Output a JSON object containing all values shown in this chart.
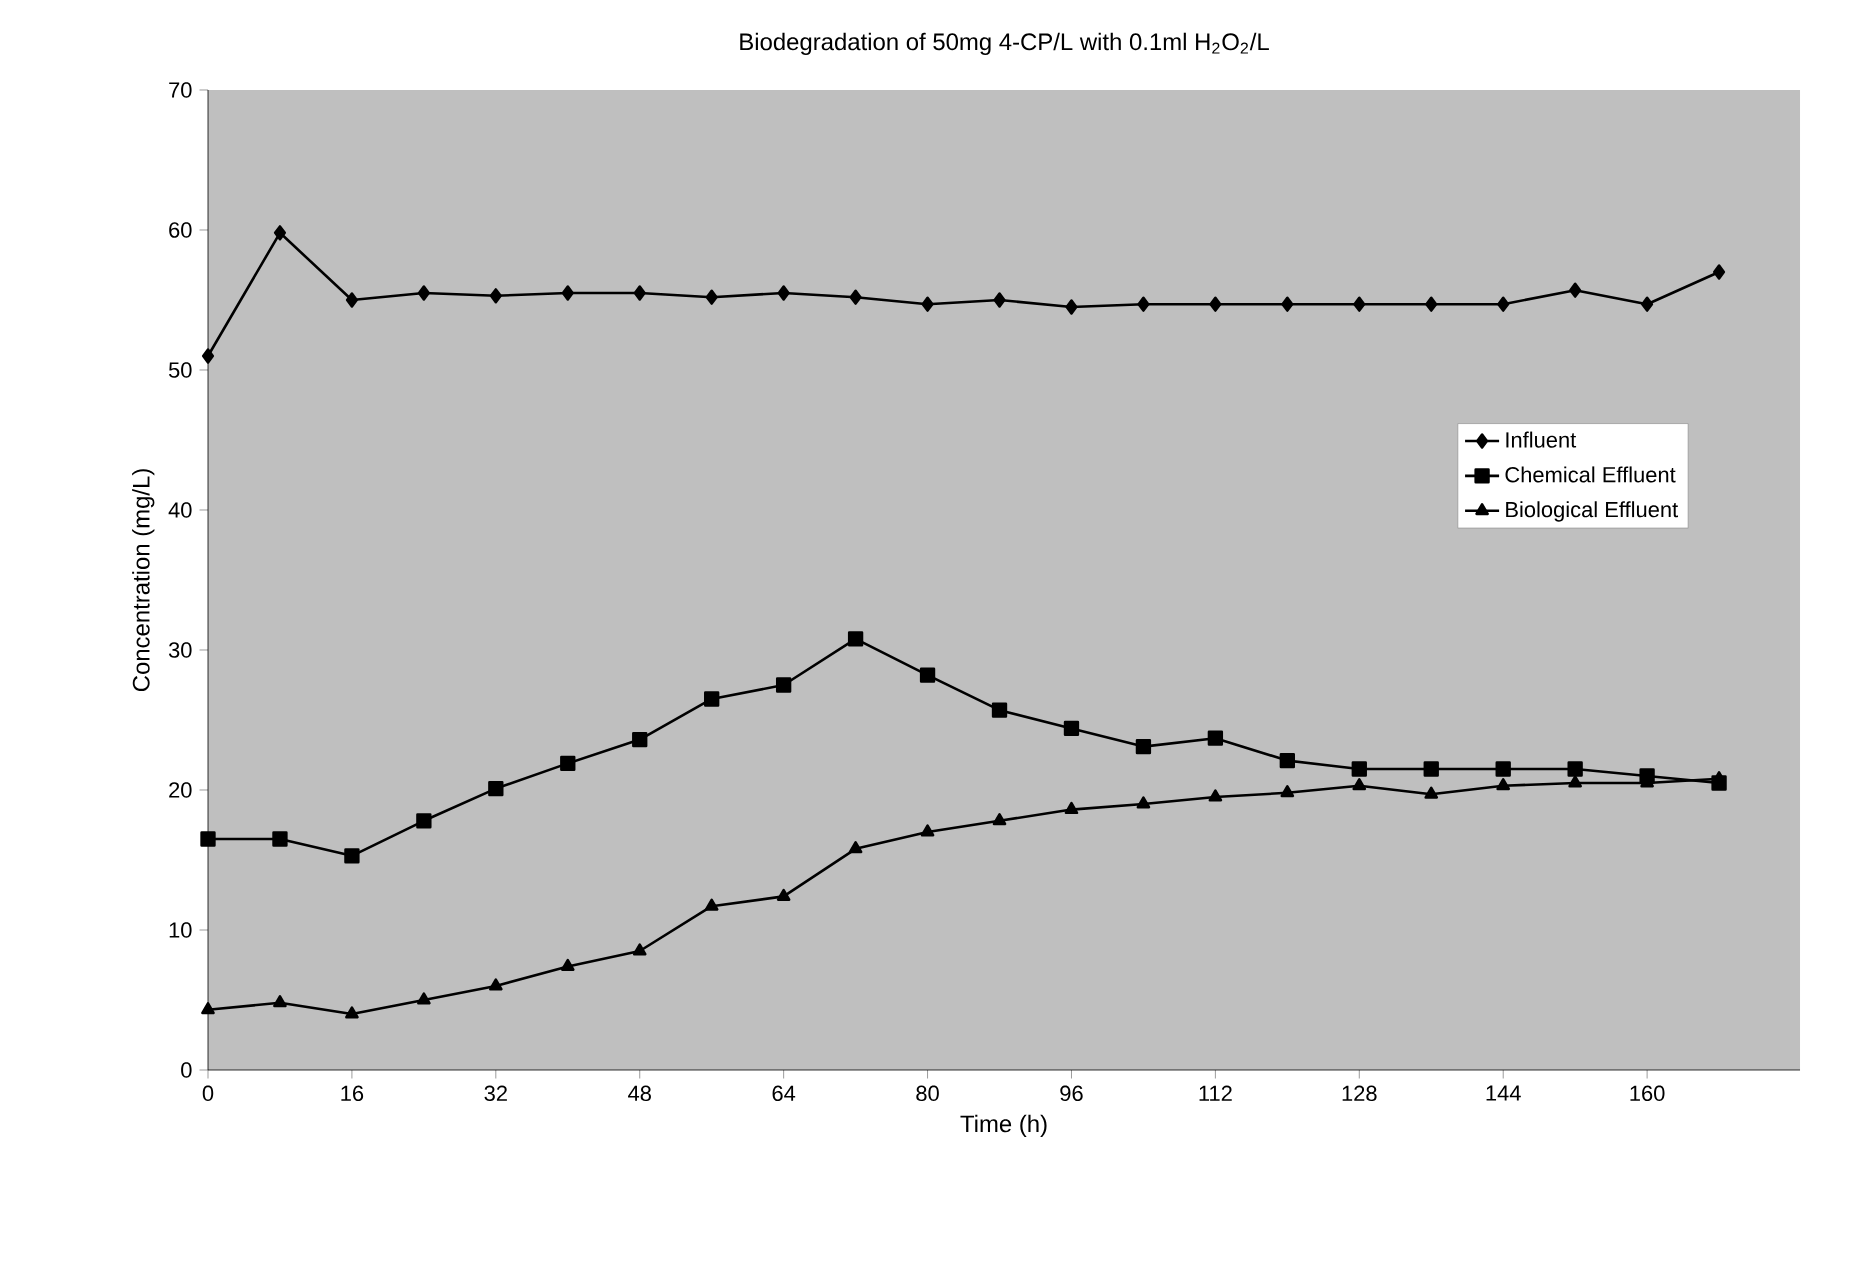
{
  "chart_data": {
    "type": "line",
    "title": "Biodegradation of  50mg 4-CP/L with 0.1ml H$_{2}$O$_{2}$/L",
    "xlabel": "Time (h)",
    "ylabel": "Concentration (mg/L)",
    "x": [
      0,
      8,
      16,
      24,
      32,
      40,
      48,
      56,
      64,
      72,
      80,
      88,
      96,
      104,
      112,
      120,
      128,
      136,
      144,
      152,
      160,
      168
    ],
    "series": [
      {
        "name": "Influent",
        "color": "#000000",
        "marker": "diamond",
        "values": [
          51,
          59.8,
          55,
          55.5,
          55.3,
          55.5,
          55.5,
          55.2,
          55.5,
          55.2,
          54.7,
          55,
          54.5,
          54.7,
          54.7,
          54.7,
          54.7,
          54.7,
          54.7,
          55.7,
          54.7,
          57
        ]
      },
      {
        "name": "Chemical Effluent",
        "color": "#000000",
        "marker": "square",
        "values": [
          16.5,
          16.5,
          15.3,
          17.8,
          20.1,
          21.9,
          23.6,
          26.5,
          27.5,
          30.8,
          28.2,
          25.7,
          24.4,
          23.1,
          23.7,
          22.1,
          21.5,
          21.5,
          21.5,
          21.5,
          21,
          20.5
        ]
      },
      {
        "name": "Biological Effluent",
        "color": "#000000",
        "marker": "triangle",
        "values": [
          4.3,
          4.8,
          4,
          5,
          6,
          7.4,
          8.5,
          11.7,
          12.4,
          15.8,
          17,
          17.8,
          18.6,
          19,
          19.5,
          19.8,
          20.3,
          19.7,
          20.3,
          20.5,
          20.5,
          20.8
        ]
      }
    ],
    "xlim": [
      0,
      177
    ],
    "ylim": [
      0,
      70
    ],
    "xticks": [
      0,
      16,
      32,
      48,
      64,
      80,
      96,
      112,
      128,
      144,
      160
    ],
    "yticks": [
      0,
      10,
      20,
      30,
      40,
      50,
      60,
      70
    ],
    "grid": false,
    "legend": "right",
    "line_style": "solid"
  }
}
